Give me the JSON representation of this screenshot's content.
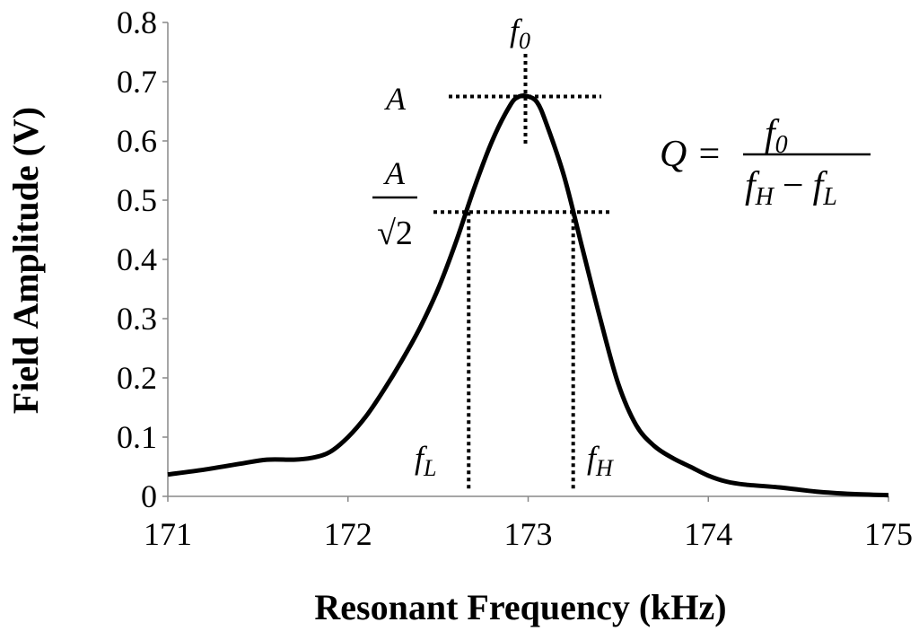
{
  "chart_data": {
    "type": "line",
    "xlabel": "Resonant Frequency (kHz)",
    "ylabel": "Field Amplitude (V)",
    "xlim": [
      171,
      175
    ],
    "ylim": [
      0,
      0.8
    ],
    "xticks": [
      "171",
      "172",
      "173",
      "174",
      "175"
    ],
    "yticks": [
      "0",
      "0.1",
      "0.2",
      "0.3",
      "0.4",
      "0.5",
      "0.6",
      "0.7",
      "0.8"
    ],
    "grid": false,
    "series": [
      {
        "color": "#000000",
        "x": [
          171.0,
          171.2,
          171.4,
          171.55,
          171.7,
          171.8,
          171.9,
          172.0,
          172.1,
          172.2,
          172.3,
          172.4,
          172.5,
          172.6,
          172.7,
          172.8,
          172.9,
          172.95,
          173.0,
          173.05,
          173.1,
          173.2,
          173.3,
          173.4,
          173.5,
          173.6,
          173.7,
          173.8,
          173.9,
          174.0,
          174.1,
          174.2,
          174.4,
          174.6,
          174.8,
          175.0
        ],
        "y": [
          0.037,
          0.045,
          0.055,
          0.062,
          0.062,
          0.065,
          0.075,
          0.1,
          0.135,
          0.18,
          0.23,
          0.285,
          0.35,
          0.43,
          0.52,
          0.6,
          0.66,
          0.675,
          0.675,
          0.665,
          0.63,
          0.54,
          0.42,
          0.3,
          0.19,
          0.12,
          0.085,
          0.065,
          0.05,
          0.035,
          0.025,
          0.02,
          0.015,
          0.008,
          0.004,
          0.002
        ]
      }
    ],
    "markers": {
      "f0": 173.0,
      "fL": 172.67,
      "fH": 173.25,
      "A": 0.675,
      "A_over_root2": 0.48
    },
    "annotations": {
      "f0_base": "f",
      "f0_sub": "0",
      "fL_base": "f",
      "fL_sub": "L",
      "fH_base": "f",
      "fH_sub": "H",
      "A": "A",
      "A_over_root2_num": "A",
      "A_over_root2_den": "√2",
      "formula_lhs": "Q =",
      "formula_num_base": "f",
      "formula_num_sub": "0",
      "formula_den_a_base": "f",
      "formula_den_a_sub": "H",
      "formula_den_minus": "−",
      "formula_den_b_base": "f",
      "formula_den_b_sub": "L"
    }
  }
}
